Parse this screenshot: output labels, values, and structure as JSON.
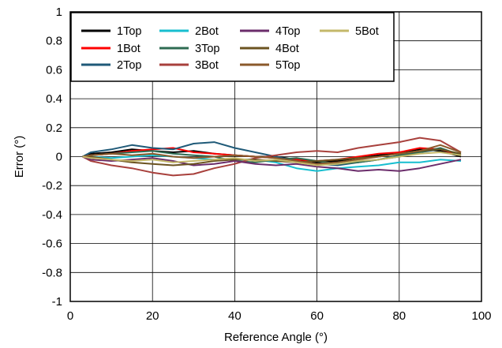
{
  "chart_data": {
    "type": "line",
    "title": "",
    "xlabel": "Reference Angle (°)",
    "ylabel": "Error (°)",
    "xlim": [
      0,
      100
    ],
    "ylim": [
      -1,
      1
    ],
    "xticks": [
      "0",
      "20",
      "40",
      "60",
      "80",
      "100"
    ],
    "yticks": [
      "1",
      "0.8",
      "0.6",
      "0.4",
      "0.2",
      "0",
      "-0.2",
      "-0.4",
      "-0.6",
      "-0.8",
      "-1"
    ],
    "grid": true,
    "legend_position": "top-left",
    "x": [
      3,
      5,
      10,
      15,
      20,
      25,
      30,
      35,
      40,
      45,
      50,
      55,
      60,
      65,
      70,
      75,
      80,
      85,
      90,
      95
    ],
    "series": [
      {
        "name": "1Top",
        "color": "#000000",
        "values": [
          0,
          0.02,
          0.03,
          0.05,
          0.04,
          0.03,
          0.04,
          0.02,
          0.01,
          0,
          0,
          -0.02,
          -0.04,
          -0.03,
          -0.01,
          0.01,
          0.03,
          0.05,
          0.04,
          0
        ]
      },
      {
        "name": "1Bot",
        "color": "#ff0000",
        "values": [
          0,
          0.01,
          0.02,
          0.04,
          0.05,
          0.06,
          0.03,
          0.02,
          0.01,
          0,
          -0.01,
          -0.02,
          -0.03,
          -0.02,
          0,
          0.02,
          0.03,
          0.06,
          0.05,
          0.01
        ]
      },
      {
        "name": "2Top",
        "color": "#1f5a78",
        "values": [
          0,
          0.03,
          0.05,
          0.08,
          0.06,
          0.05,
          0.09,
          0.1,
          0.06,
          0.03,
          0,
          -0.03,
          -0.05,
          -0.06,
          -0.04,
          -0.02,
          0,
          0.03,
          0.05,
          0.02
        ]
      },
      {
        "name": "2Bot",
        "color": "#17becf",
        "values": [
          0,
          0,
          -0.01,
          0,
          0.01,
          0,
          -0.01,
          -0.02,
          -0.02,
          -0.02,
          -0.04,
          -0.08,
          -0.1,
          -0.08,
          -0.07,
          -0.06,
          -0.04,
          -0.04,
          -0.02,
          -0.03
        ]
      },
      {
        "name": "3Top",
        "color": "#2e6b52",
        "values": [
          0,
          0.01,
          0.02,
          0.03,
          0.04,
          0.02,
          0.01,
          0,
          -0.03,
          -0.04,
          -0.02,
          -0.01,
          -0.03,
          -0.05,
          -0.04,
          -0.02,
          0.01,
          0.03,
          0.06,
          0.01
        ]
      },
      {
        "name": "3Bot",
        "color": "#a8403c",
        "values": [
          0,
          -0.03,
          -0.06,
          -0.08,
          -0.11,
          -0.13,
          -0.12,
          -0.08,
          -0.05,
          -0.01,
          0.01,
          0.03,
          0.04,
          0.03,
          0.06,
          0.08,
          0.1,
          0.13,
          0.11,
          0.03
        ]
      },
      {
        "name": "4Top",
        "color": "#6b2d6b",
        "values": [
          0,
          -0.02,
          -0.03,
          -0.02,
          -0.01,
          -0.03,
          -0.06,
          -0.05,
          -0.03,
          -0.05,
          -0.06,
          -0.05,
          -0.07,
          -0.08,
          -0.1,
          -0.09,
          -0.1,
          -0.08,
          -0.05,
          -0.02
        ]
      },
      {
        "name": "4Bot",
        "color": "#6b5320",
        "values": [
          0,
          0,
          -0.02,
          -0.04,
          -0.05,
          -0.06,
          -0.05,
          -0.03,
          -0.02,
          -0.02,
          -0.03,
          -0.04,
          -0.03,
          -0.02,
          -0.01,
          0,
          0.02,
          0.04,
          0.05,
          0.02
        ]
      },
      {
        "name": "5Top",
        "color": "#8b5a2b",
        "values": [
          0,
          0.01,
          0.02,
          0.01,
          0.02,
          0,
          -0.01,
          0,
          0.01,
          0,
          -0.01,
          -0.03,
          -0.05,
          -0.04,
          -0.02,
          0,
          0.02,
          0.04,
          0.08,
          0.03
        ]
      },
      {
        "name": "5Bot",
        "color": "#c4b86a",
        "values": [
          0,
          -0.01,
          -0.02,
          -0.03,
          -0.02,
          -0.04,
          -0.03,
          -0.02,
          -0.01,
          -0.03,
          -0.02,
          -0.04,
          -0.06,
          -0.05,
          -0.03,
          -0.02,
          0,
          0.02,
          0.03,
          0.01
        ]
      }
    ]
  }
}
